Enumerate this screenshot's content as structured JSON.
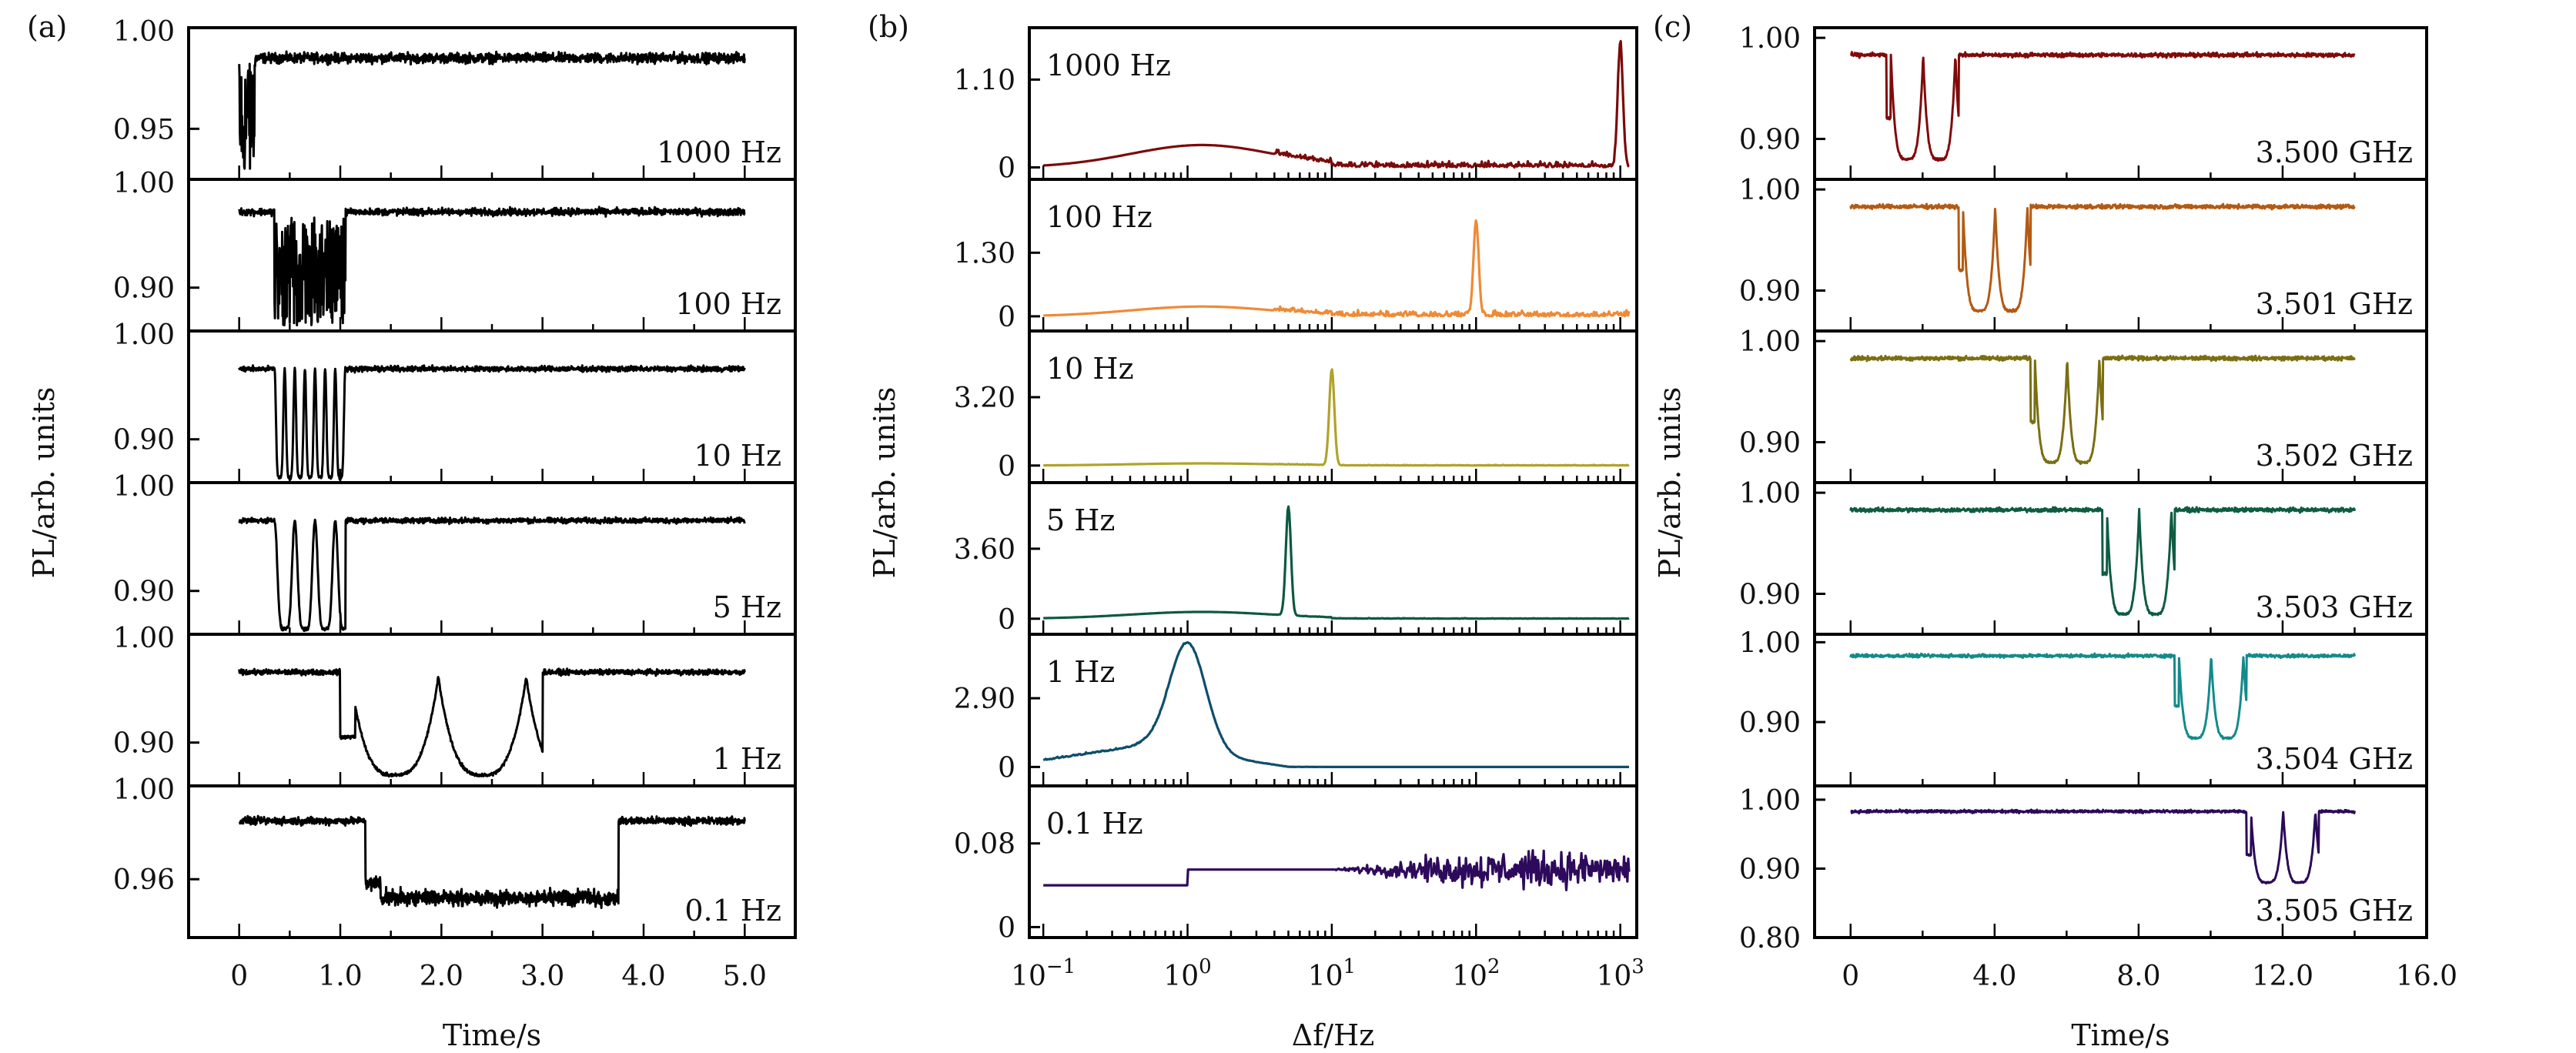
{
  "chart_data": [
    {
      "id": "a",
      "panel_label": "(a)",
      "type": "line",
      "xlabel": "Time/s",
      "ylabel": "PL/arb. units",
      "xlim": [
        -0.5,
        5.5
      ],
      "xticks": [
        0,
        1,
        2,
        3,
        4,
        5
      ],
      "xtick_labels": [
        "0",
        "1.0",
        "2.0",
        "3.0",
        "4.0",
        "5.0"
      ],
      "color": "#000000",
      "subplots": [
        {
          "annotation": "1000 Hz",
          "ylim": [
            0.925,
            1.0
          ],
          "yticks": [
            0.95,
            1.0
          ],
          "ytick_labels": [
            "0.95",
            "1.00"
          ],
          "baseline": 0.985,
          "noise": 0.003,
          "mod_start": 0.0,
          "mod_end": 0.16,
          "mod_freq": 1000,
          "dip_min": 0.93,
          "shape": "burst"
        },
        {
          "annotation": "100 Hz",
          "ylim": [
            0.86,
            1.0
          ],
          "yticks": [
            0.9,
            1.0
          ],
          "ytick_labels": [
            "0.90",
            "1.00"
          ],
          "baseline": 0.97,
          "noise": 0.004,
          "mod_start": 0.35,
          "mod_end": 1.05,
          "mod_freq": 100,
          "dip_min": 0.865,
          "shape": "burst"
        },
        {
          "annotation": "10 Hz",
          "ylim": [
            0.86,
            1.0
          ],
          "yticks": [
            0.9,
            1.0
          ],
          "ytick_labels": [
            "0.90",
            "1.00"
          ],
          "baseline": 0.965,
          "noise": 0.003,
          "mod_start": 0.35,
          "mod_end": 1.05,
          "mod_freq": 10,
          "dip_min": 0.865,
          "shape": "osc"
        },
        {
          "annotation": "5 Hz",
          "ylim": [
            0.86,
            1.0
          ],
          "yticks": [
            0.9,
            1.0
          ],
          "ytick_labels": [
            "0.90",
            "1.00"
          ],
          "baseline": 0.965,
          "noise": 0.003,
          "mod_start": 0.35,
          "mod_end": 1.05,
          "mod_freq": 5,
          "dip_min": 0.865,
          "shape": "osc"
        },
        {
          "annotation": "1 Hz",
          "ylim": [
            0.86,
            1.0
          ],
          "yticks": [
            0.9,
            1.0
          ],
          "ytick_labels": [
            "0.90",
            "1.00"
          ],
          "baseline": 0.965,
          "noise": 0.003,
          "mod_start": 1.0,
          "mod_end": 3.0,
          "mod_freq": 1,
          "dip_min": 0.87,
          "shape": "sweep"
        },
        {
          "annotation": "0.1 Hz",
          "ylim": [
            0.935,
            1.0
          ],
          "yticks": [
            0.96,
            1.0
          ],
          "ytick_labels": [
            "0.96",
            "1.00"
          ],
          "baseline": 0.985,
          "noise": 0.002,
          "mod_start": 1.25,
          "mod_end": 3.75,
          "mod_freq": 0.1,
          "dip_min": 0.952,
          "shape": "step"
        }
      ]
    },
    {
      "id": "b",
      "panel_label": "(b)",
      "type": "line",
      "xscale": "log",
      "xlabel": "Δf/Hz",
      "ylabel": "PL/arb. units",
      "xlim": [
        0.08,
        1300
      ],
      "xticks": [
        0.1,
        1,
        10,
        100,
        1000
      ],
      "xtick_labels": [
        "10",
        "10",
        "10",
        "10",
        "10"
      ],
      "xtick_exponents": [
        "−1",
        "0",
        "1",
        "2",
        "3"
      ],
      "subplots": [
        {
          "annotation": "1000 Hz",
          "color": "#7a0a0a",
          "ylim": [
            -0.15,
            1.75
          ],
          "yticks": [
            0,
            1.1
          ],
          "ytick_labels": [
            "0",
            "1.10"
          ],
          "peak_freq": 1000,
          "peak_value": 1.55,
          "noise_floor": 0.08,
          "lowfreq_bump": 0.28
        },
        {
          "annotation": "100 Hz",
          "color": "#ef8a35",
          "ylim": [
            -0.3,
            2.8
          ],
          "yticks": [
            0,
            1.3
          ],
          "ytick_labels": [
            "0",
            "1.30"
          ],
          "peak_freq": 100,
          "peak_value": 1.95,
          "noise_floor": 0.12,
          "lowfreq_bump": 0.2
        },
        {
          "annotation": "10 Hz",
          "color": "#b0a32a",
          "ylim": [
            -0.8,
            6.3
          ],
          "yticks": [
            0,
            3.2
          ],
          "ytick_labels": [
            "0",
            "3.20"
          ],
          "peak_freq": 10,
          "peak_value": 4.5,
          "noise_floor": 0.03,
          "lowfreq_bump": 0.1
        },
        {
          "annotation": "5 Hz",
          "color": "#0c5a3e",
          "ylim": [
            -0.8,
            7.0
          ],
          "yticks": [
            0,
            3.6
          ],
          "ytick_labels": [
            "0",
            "3.60"
          ],
          "peak_freq": 5,
          "peak_value": 5.6,
          "noise_floor": 0.03,
          "lowfreq_bump": 0.35
        },
        {
          "annotation": "1 Hz",
          "color": "#0e4e6b",
          "ylim": [
            -0.8,
            5.6
          ],
          "yticks": [
            0,
            2.9
          ],
          "ytick_labels": [
            "0",
            "2.90"
          ],
          "peak_freq": 1,
          "peak_value": 4.6,
          "noise_floor": 0.03,
          "lowfreq_bump": 0.9
        },
        {
          "annotation": "0.1 Hz",
          "color": "#2e0a5c",
          "ylim": [
            -0.01,
            0.135
          ],
          "yticks": [
            0,
            0.08
          ],
          "ytick_labels": [
            "0",
            "0.08"
          ],
          "peak_freq": 0.1,
          "peak_value": 0.04,
          "noise_floor": 0.045,
          "lowfreq_bump": 0.04
        }
      ]
    },
    {
      "id": "c",
      "panel_label": "(c)",
      "type": "line",
      "xlabel": "Time/s",
      "ylabel": "PL/arb. units",
      "xlim": [
        -1,
        16
      ],
      "xticks": [
        0,
        4,
        8,
        12,
        16
      ],
      "xtick_labels": [
        "0",
        "4.0",
        "8.0",
        "12.0",
        "16.0"
      ],
      "subplots": [
        {
          "annotation": "3.500 GHz",
          "color": "#800a0a",
          "ylim": [
            0.86,
            1.01
          ],
          "yticks": [
            0.9,
            1.0
          ],
          "ytick_labels": [
            "0.90",
            "1.00"
          ],
          "mod_start": 1.0,
          "mod_end": 3.0
        },
        {
          "annotation": "3.501 GHz",
          "color": "#b35a14",
          "ylim": [
            0.86,
            1.01
          ],
          "yticks": [
            0.9,
            1.0
          ],
          "ytick_labels": [
            "0.90",
            "1.00"
          ],
          "mod_start": 3.0,
          "mod_end": 5.0
        },
        {
          "annotation": "3.502 GHz",
          "color": "#7a6e12",
          "ylim": [
            0.86,
            1.01
          ],
          "yticks": [
            0.9,
            1.0
          ],
          "ytick_labels": [
            "0.90",
            "1.00"
          ],
          "mod_start": 5.0,
          "mod_end": 7.0
        },
        {
          "annotation": "3.503 GHz",
          "color": "#0e5c42",
          "ylim": [
            0.86,
            1.01
          ],
          "yticks": [
            0.9,
            1.0
          ],
          "ytick_labels": [
            "0.90",
            "1.00"
          ],
          "mod_start": 7.0,
          "mod_end": 9.0
        },
        {
          "annotation": "3.504 GHz",
          "color": "#148a8a",
          "ylim": [
            0.82,
            1.01
          ],
          "yticks": [
            0.9,
            1.0
          ],
          "ytick_labels": [
            "0.90",
            "1.00"
          ],
          "mod_start": 9.0,
          "mod_end": 11.0
        },
        {
          "annotation": "3.505 GHz",
          "color": "#2c0a58",
          "ylim": [
            0.8,
            1.02
          ],
          "yticks": [
            0.8,
            0.9,
            1.0
          ],
          "ytick_labels": [
            "0.80",
            "0.90",
            "1.00"
          ],
          "mod_start": 11.0,
          "mod_end": 13.0
        }
      ],
      "baseline": 0.983,
      "dip_min": 0.88
    }
  ]
}
